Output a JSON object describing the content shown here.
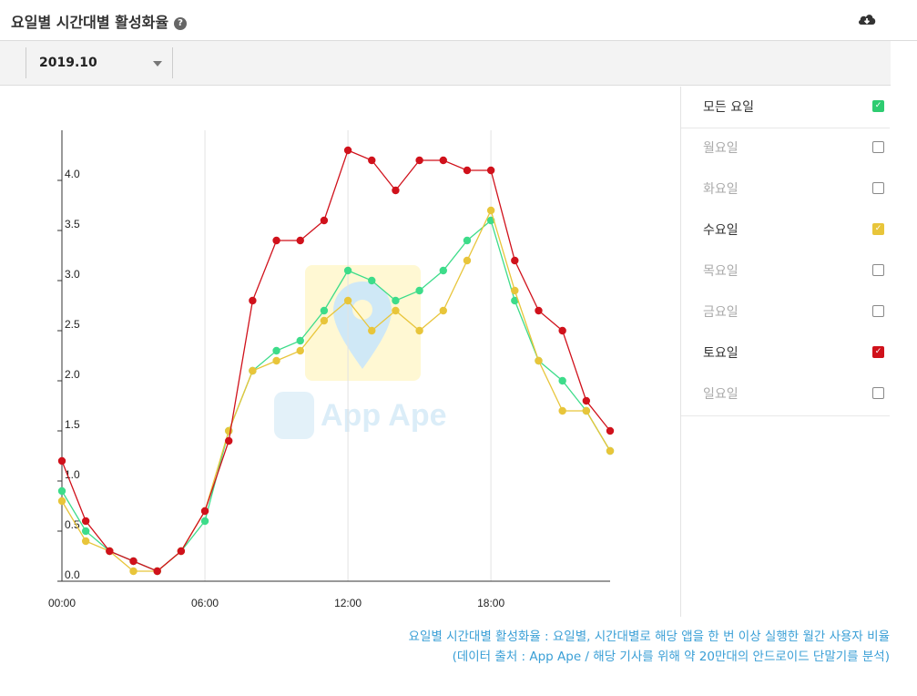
{
  "header": {
    "title": "요일별 시간대별 활성화율",
    "help_icon": "question-circle-icon",
    "download_icon": "cloud-download-icon"
  },
  "toolbar": {
    "selected_month": "2019.10"
  },
  "watermark": {
    "text": "App Ape"
  },
  "legend": {
    "items": [
      {
        "label": "모든 요일",
        "checked": true,
        "color": "#2ecc71"
      },
      {
        "label": "월요일",
        "checked": false,
        "color": "#888888"
      },
      {
        "label": "화요일",
        "checked": false,
        "color": "#888888"
      },
      {
        "label": "수요일",
        "checked": true,
        "color": "#e8c53a"
      },
      {
        "label": "목요일",
        "checked": false,
        "color": "#888888"
      },
      {
        "label": "금요일",
        "checked": false,
        "color": "#888888"
      },
      {
        "label": "토요일",
        "checked": true,
        "color": "#d0111b"
      },
      {
        "label": "일요일",
        "checked": false,
        "color": "#888888"
      }
    ]
  },
  "caption": {
    "line1": "요일별 시간대별 활성화율 : 요일별, 시간대별로 해당 앱을 한 번 이상 실행한 월간 사용자 비율",
    "line2": "(데이터 출처 : App Ape / 해당 기사를 위해 약 20만대의 안드로이드 단말기를 분석)"
  },
  "chart_data": {
    "type": "line",
    "x": [
      0,
      1,
      2,
      3,
      4,
      5,
      6,
      7,
      8,
      9,
      10,
      11,
      12,
      13,
      14,
      15,
      16,
      17,
      18,
      19,
      20,
      21,
      22,
      23
    ],
    "xticks": [
      0,
      6,
      12,
      18
    ],
    "xtick_labels": [
      "00:00",
      "06:00",
      "12:00",
      "18:00"
    ],
    "xlim": [
      0,
      23
    ],
    "yticks": [
      0.0,
      0.5,
      1.0,
      1.5,
      2.0,
      2.5,
      3.0,
      3.5,
      4.0
    ],
    "ytick_labels": [
      "0.0",
      "0.5",
      "1.0",
      "1.5",
      "2.0",
      "2.5",
      "3.0",
      "3.5",
      "4.0"
    ],
    "ylim": [
      0,
      4.5
    ],
    "grid": "vertical",
    "series": [
      {
        "name": "모든 요일",
        "color": "#3ddc8a",
        "values": [
          0.9,
          0.5,
          0.3,
          0.2,
          0.1,
          0.3,
          0.6,
          1.5,
          2.1,
          2.3,
          2.4,
          2.7,
          3.1,
          3.0,
          2.8,
          2.9,
          3.1,
          3.4,
          3.6,
          2.8,
          2.2,
          2.0,
          1.7,
          1.3
        ]
      },
      {
        "name": "수요일",
        "color": "#e8c53a",
        "values": [
          0.8,
          0.4,
          0.3,
          0.1,
          0.1,
          0.3,
          0.7,
          1.5,
          2.1,
          2.2,
          2.3,
          2.6,
          2.8,
          2.5,
          2.7,
          2.5,
          2.7,
          3.2,
          3.7,
          2.9,
          2.2,
          1.7,
          1.7,
          1.3
        ]
      },
      {
        "name": "토요일",
        "color": "#d0111b",
        "values": [
          1.2,
          0.6,
          0.3,
          0.2,
          0.1,
          0.3,
          0.7,
          1.4,
          2.8,
          3.4,
          3.4,
          3.6,
          4.3,
          4.2,
          3.9,
          4.2,
          4.2,
          4.1,
          4.1,
          3.2,
          2.7,
          2.5,
          1.8,
          1.5
        ]
      }
    ]
  }
}
